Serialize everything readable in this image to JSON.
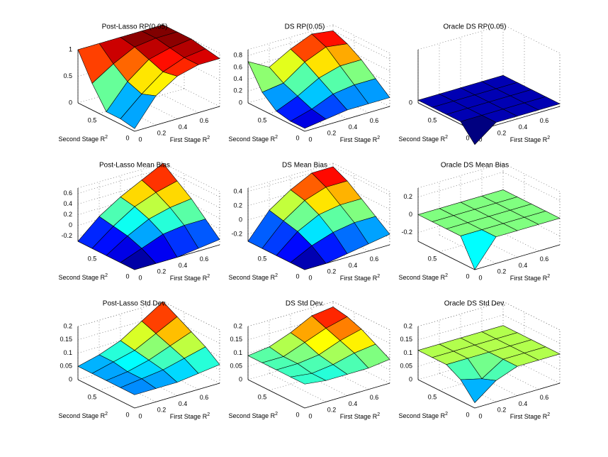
{
  "chart_data": [
    {
      "type": "surface",
      "title": "Post-Lasso RP(0.05)",
      "xlabel": {
        "text": "First Stage R",
        "sup": "2"
      },
      "ylabel": {
        "text": "Second Stage R",
        "sup": "2"
      },
      "x": [
        0,
        0.2,
        0.4,
        0.6,
        0.8
      ],
      "y": [
        0,
        0.2,
        0.4,
        0.6,
        0.8
      ],
      "xlim": [
        0,
        0.8
      ],
      "ylim": [
        0,
        0.8
      ],
      "xticks": [
        0,
        0.2,
        0.4,
        0.6
      ],
      "yticks": [
        0,
        0.5
      ],
      "zlim": [
        0,
        1
      ],
      "zticks": [
        0,
        0.5,
        1
      ],
      "z": [
        [
          0.05,
          0.55,
          0.8,
          0.9,
          0.9
        ],
        [
          0.1,
          0.45,
          0.75,
          0.9,
          0.95
        ],
        [
          0.1,
          0.55,
          0.85,
          0.95,
          1
        ],
        [
          0.5,
          0.75,
          0.95,
          1,
          1
        ],
        [
          1,
          1,
          1,
          1,
          1
        ]
      ]
    },
    {
      "type": "surface",
      "title": "DS RP(0.05)",
      "xlabel": {
        "text": "First Stage R",
        "sup": "2"
      },
      "ylabel": {
        "text": "Second Stage R",
        "sup": "2"
      },
      "x": [
        0,
        0.2,
        0.4,
        0.6,
        0.8
      ],
      "y": [
        0,
        0.2,
        0.4,
        0.6,
        0.8
      ],
      "xlim": [
        0,
        0.8
      ],
      "ylim": [
        0,
        0.8
      ],
      "xticks": [
        0,
        0.2,
        0.4,
        0.6
      ],
      "yticks": [
        0,
        0.5
      ],
      "zlim": [
        0,
        0.9
      ],
      "zticks": [
        0,
        0.2,
        0.4,
        0.6,
        0.8
      ],
      "z": [
        [
          0.05,
          0.1,
          0.15,
          0.15,
          0.15
        ],
        [
          0.05,
          0.15,
          0.3,
          0.35,
          0.35
        ],
        [
          0.1,
          0.25,
          0.45,
          0.55,
          0.55
        ],
        [
          0.3,
          0.35,
          0.6,
          0.75,
          0.7
        ],
        [
          0.7,
          0.5,
          0.7,
          0.85,
          0.8
        ]
      ]
    },
    {
      "type": "surface",
      "title": "Oracle DS RP(0.05)",
      "xlabel": {
        "text": "First Stage R",
        "sup": "2"
      },
      "ylabel": {
        "text": "Second Stage R",
        "sup": "2"
      },
      "x": [
        0,
        0.2,
        0.4,
        0.6,
        0.8
      ],
      "y": [
        0,
        0.2,
        0.4,
        0.6,
        0.8
      ],
      "xlim": [
        0,
        0.8
      ],
      "ylim": [
        0,
        0.8
      ],
      "xticks": [
        0,
        0.2,
        0.4,
        0.6
      ],
      "yticks": [
        0,
        0.5
      ],
      "zlim": [
        0,
        1
      ],
      "zticks": [
        0
      ],
      "z": [
        [
          -0.25,
          0.05,
          0.05,
          0.05,
          0.05
        ],
        [
          0.05,
          0.05,
          0.05,
          0.05,
          0.05
        ],
        [
          0.05,
          0.05,
          0.05,
          0.05,
          0.05
        ],
        [
          0.05,
          0.05,
          0.05,
          0.05,
          0.05
        ],
        [
          0.05,
          0.05,
          0.05,
          0.05,
          0.05
        ]
      ]
    },
    {
      "type": "surface",
      "title": "Post-Lasso Mean Bias",
      "xlabel": {
        "text": "First Stage R",
        "sup": "2"
      },
      "ylabel": {
        "text": "Second Stage R",
        "sup": "2"
      },
      "x": [
        0,
        0.2,
        0.4,
        0.6,
        0.8
      ],
      "y": [
        0,
        0.2,
        0.4,
        0.6,
        0.8
      ],
      "xlim": [
        0,
        0.8
      ],
      "ylim": [
        0,
        0.8
      ],
      "xticks": [
        0,
        0.2,
        0.4,
        0.6
      ],
      "yticks": [
        0,
        0.5
      ],
      "zlim": [
        -0.3,
        0.7
      ],
      "zticks": [
        -0.2,
        0,
        0.2,
        0.4,
        0.6
      ],
      "z": [
        [
          -0.3,
          -0.3,
          -0.3,
          -0.25,
          -0.2
        ],
        [
          -0.3,
          -0.15,
          0,
          0.05,
          0.05
        ],
        [
          -0.3,
          -0.05,
          0.15,
          0.25,
          0.3
        ],
        [
          -0.3,
          0,
          0.25,
          0.4,
          0.5
        ],
        [
          -0.3,
          0.05,
          0.3,
          0.5,
          0.7
        ]
      ]
    },
    {
      "type": "surface",
      "title": "DS Mean Bias",
      "xlabel": {
        "text": "First Stage R",
        "sup": "2"
      },
      "ylabel": {
        "text": "Second Stage R",
        "sup": "2"
      },
      "x": [
        0,
        0.2,
        0.4,
        0.6,
        0.8
      ],
      "y": [
        0,
        0.2,
        0.4,
        0.6,
        0.8
      ],
      "xlim": [
        0,
        0.8
      ],
      "ylim": [
        0,
        0.8
      ],
      "xticks": [
        0,
        0.2,
        0.4,
        0.6
      ],
      "yticks": [
        0,
        0.5
      ],
      "zlim": [
        -0.3,
        0.45
      ],
      "zticks": [
        -0.2,
        0,
        0.2,
        0.4
      ],
      "z": [
        [
          -0.3,
          -0.3,
          -0.25,
          -0.2,
          -0.15
        ],
        [
          -0.3,
          -0.15,
          -0.05,
          0,
          0
        ],
        [
          -0.3,
          -0.05,
          0.1,
          0.15,
          0.15
        ],
        [
          -0.3,
          0,
          0.2,
          0.3,
          0.3
        ],
        [
          -0.3,
          0.05,
          0.25,
          0.4,
          0.4
        ]
      ]
    },
    {
      "type": "surface",
      "title": "Oracle DS Mean Bias",
      "xlabel": {
        "text": "First Stage R",
        "sup": "2"
      },
      "ylabel": {
        "text": "Second Stage R",
        "sup": "2"
      },
      "x": [
        0,
        0.2,
        0.4,
        0.6,
        0.8
      ],
      "y": [
        0,
        0.2,
        0.4,
        0.6,
        0.8
      ],
      "xlim": [
        0,
        0.8
      ],
      "ylim": [
        0,
        0.8
      ],
      "xticks": [
        0,
        0.2,
        0.4,
        0.6
      ],
      "yticks": [
        0,
        0.5
      ],
      "zlim": [
        -0.3,
        0.3
      ],
      "zticks": [
        -0.2,
        0,
        0.2
      ],
      "z": [
        [
          -0.3,
          0,
          0,
          0,
          0
        ],
        [
          0,
          0,
          0,
          0,
          0
        ],
        [
          0,
          0,
          0,
          0,
          0
        ],
        [
          0,
          0,
          0,
          0,
          0
        ],
        [
          0,
          0,
          0,
          0,
          0
        ]
      ]
    },
    {
      "type": "surface",
      "title": "Post-Lasso Std Dev.",
      "xlabel": {
        "text": "First Stage R",
        "sup": "2"
      },
      "ylabel": {
        "text": "Second Stage R",
        "sup": "2"
      },
      "x": [
        0,
        0.2,
        0.4,
        0.6,
        0.8
      ],
      "y": [
        0,
        0.2,
        0.4,
        0.6,
        0.8
      ],
      "xlim": [
        0,
        0.8
      ],
      "ylim": [
        0,
        0.8
      ],
      "xticks": [
        0,
        0.2,
        0.4,
        0.6
      ],
      "yticks": [
        0,
        0.5
      ],
      "zlim": [
        0,
        0.2
      ],
      "zticks": [
        0,
        0.05,
        0.1,
        0.15,
        0.2
      ],
      "z": [
        [
          0.05,
          0.05,
          0.05,
          0.06,
          0.07
        ],
        [
          0.05,
          0.06,
          0.07,
          0.09,
          0.11
        ],
        [
          0.05,
          0.06,
          0.08,
          0.11,
          0.14
        ],
        [
          0.05,
          0.07,
          0.09,
          0.13,
          0.17
        ],
        [
          0.05,
          0.07,
          0.1,
          0.15,
          0.2
        ]
      ]
    },
    {
      "type": "surface",
      "title": "DS Std Dev.",
      "xlabel": {
        "text": "First Stage R",
        "sup": "2"
      },
      "ylabel": {
        "text": "Second Stage R",
        "sup": "2"
      },
      "x": [
        0,
        0.2,
        0.4,
        0.6,
        0.8
      ],
      "y": [
        0,
        0.2,
        0.4,
        0.6,
        0.8
      ],
      "xlim": [
        0,
        0.8
      ],
      "ylim": [
        0,
        0.8
      ],
      "xticks": [
        0,
        0.2,
        0.4,
        0.6
      ],
      "yticks": [
        0,
        0.5
      ],
      "zlim": [
        0,
        0.2
      ],
      "zticks": [
        0,
        0.05,
        0.1,
        0.15,
        0.2
      ],
      "z": [
        [
          0.09,
          0.08,
          0.08,
          0.08,
          0.09
        ],
        [
          0.09,
          0.08,
          0.09,
          0.11,
          0.12
        ],
        [
          0.09,
          0.09,
          0.1,
          0.13,
          0.15
        ],
        [
          0.09,
          0.09,
          0.12,
          0.15,
          0.17
        ],
        [
          0.09,
          0.1,
          0.13,
          0.17,
          0.18
        ]
      ]
    },
    {
      "type": "surface",
      "title": "Oracle DS Std Dev.",
      "xlabel": {
        "text": "First Stage R",
        "sup": "2"
      },
      "ylabel": {
        "text": "Second Stage R",
        "sup": "2"
      },
      "x": [
        0,
        0.2,
        0.4,
        0.6,
        0.8
      ],
      "y": [
        0,
        0.2,
        0.4,
        0.6,
        0.8
      ],
      "xlim": [
        0,
        0.8
      ],
      "ylim": [
        0,
        0.8
      ],
      "xticks": [
        0,
        0.2,
        0.4,
        0.6
      ],
      "yticks": [
        0,
        0.5
      ],
      "zlim": [
        0,
        0.2
      ],
      "zticks": [
        0,
        0.05,
        0.1,
        0.15,
        0.2
      ],
      "z": [
        [
          0.02,
          0.08,
          0.11,
          0.11,
          0.11
        ],
        [
          0.08,
          0.06,
          0.11,
          0.11,
          0.11
        ],
        [
          0.11,
          0.11,
          0.11,
          0.11,
          0.11
        ],
        [
          0.11,
          0.11,
          0.11,
          0.11,
          0.11
        ],
        [
          0.11,
          0.11,
          0.11,
          0.11,
          0.11
        ]
      ]
    }
  ]
}
